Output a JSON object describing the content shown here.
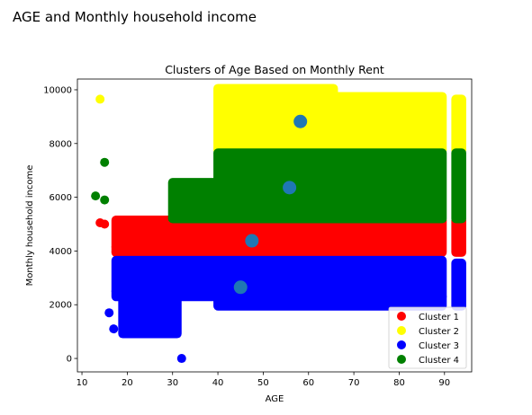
{
  "page": {
    "heading": "AGE and Monthly household income"
  },
  "chart_data": {
    "type": "scatter",
    "title": "Clusters of Age Based on Monthly Rent",
    "xlabel": "AGE",
    "ylabel": "Monthly household income",
    "xlim": [
      9,
      96
    ],
    "ylim": [
      -500,
      10400
    ],
    "xticks": [
      "10",
      "20",
      "30",
      "40",
      "50",
      "60",
      "70",
      "80",
      "90"
    ],
    "yticks": [
      "0",
      "2000",
      "4000",
      "6000",
      "8000",
      "10000"
    ],
    "grid": false,
    "legend_position": "lower-right",
    "series": [
      {
        "name": "Cluster 1",
        "color": "#ff0000",
        "regions": [
          {
            "x": [
              17.5,
              89.5
            ],
            "y": [
              3950,
              5150
            ]
          },
          {
            "x": [
              92.5,
              93.8
            ],
            "y": [
              3950,
              5150
            ]
          }
        ],
        "points": [
          {
            "x": 14,
            "y": 5050
          },
          {
            "x": 15,
            "y": 5000
          },
          {
            "x": 17.5,
            "y": 4150
          },
          {
            "x": 17.5,
            "y": 3950
          }
        ]
      },
      {
        "name": "Cluster 2",
        "color": "#ffff00",
        "regions": [
          {
            "x": [
              40,
              65.5
            ],
            "y": [
              7750,
              10050
            ]
          },
          {
            "x": [
              65.5,
              89.5
            ],
            "y": [
              7750,
              9750
            ]
          },
          {
            "x": [
              92.5,
              93.8
            ],
            "y": [
              7750,
              9650
            ]
          }
        ],
        "points": [
          {
            "x": 14,
            "y": 9650
          }
        ]
      },
      {
        "name": "Cluster 3",
        "color": "#0000ff",
        "regions": [
          {
            "x": [
              17.5,
              89.5
            ],
            "y": [
              2300,
              3650
            ]
          },
          {
            "x": [
              19,
              31
            ],
            "y": [
              920,
              2300
            ]
          },
          {
            "x": [
              40,
              89.5
            ],
            "y": [
              1950,
              2300
            ]
          },
          {
            "x": [
              92.5,
              93.8
            ],
            "y": [
              1950,
              3550
            ]
          }
        ],
        "points": [
          {
            "x": 16,
            "y": 1700
          },
          {
            "x": 17,
            "y": 1100
          },
          {
            "x": 17.5,
            "y": 2500
          },
          {
            "x": 32,
            "y": 0
          }
        ]
      },
      {
        "name": "Cluster 4",
        "color": "#008000",
        "regions": [
          {
            "x": [
              30,
              40
            ],
            "y": [
              5200,
              6550
            ]
          },
          {
            "x": [
              40,
              89.5
            ],
            "y": [
              5200,
              7650
            ]
          },
          {
            "x": [
              92.5,
              93.8
            ],
            "y": [
              5200,
              7650
            ]
          }
        ],
        "points": [
          {
            "x": 13,
            "y": 6050
          },
          {
            "x": 15,
            "y": 5900
          },
          {
            "x": 15,
            "y": 7300
          }
        ]
      }
    ],
    "centroids": {
      "color": "#1f77b4",
      "points": [
        {
          "x": 47.5,
          "y": 4380
        },
        {
          "x": 58.2,
          "y": 8820
        },
        {
          "x": 45.0,
          "y": 2650
        },
        {
          "x": 55.8,
          "y": 6360
        }
      ]
    }
  }
}
